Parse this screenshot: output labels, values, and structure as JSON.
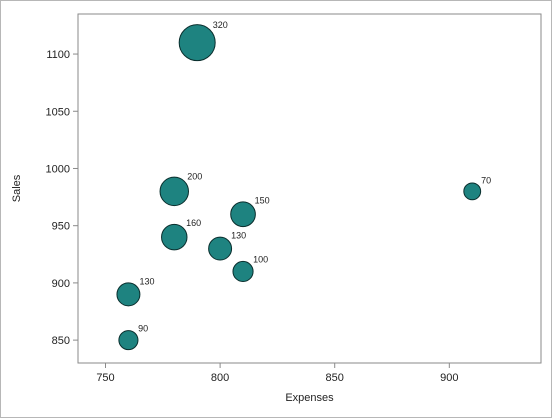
{
  "chart_data": {
    "type": "scatter",
    "subtype": "bubble",
    "xlabel": "Expenses",
    "ylabel": "Sales",
    "xlim": [
      738,
      940
    ],
    "ylim": [
      830,
      1135
    ],
    "xticks": [
      750,
      800,
      850,
      900
    ],
    "yticks": [
      850,
      900,
      950,
      1000,
      1050,
      1100
    ],
    "grid": false,
    "legend": "none",
    "series": [
      {
        "points": [
          {
            "x": 790,
            "y": 1110,
            "size": 320,
            "label": "320"
          },
          {
            "x": 910,
            "y": 980,
            "size": 70,
            "label": "70"
          },
          {
            "x": 780,
            "y": 980,
            "size": 200,
            "label": "200"
          },
          {
            "x": 810,
            "y": 960,
            "size": 150,
            "label": "150"
          },
          {
            "x": 780,
            "y": 940,
            "size": 160,
            "label": "160"
          },
          {
            "x": 800,
            "y": 930,
            "size": 130,
            "label": "130"
          },
          {
            "x": 810,
            "y": 910,
            "size": 100,
            "label": "100"
          },
          {
            "x": 760,
            "y": 890,
            "size": 130,
            "label": "130"
          },
          {
            "x": 760,
            "y": 850,
            "size": 90,
            "label": "90"
          }
        ]
      }
    ]
  },
  "colors": {
    "bubble_fill": "#1e8380",
    "bubble_stroke": "#0a2e2d",
    "axis": "#8a8a8a"
  }
}
